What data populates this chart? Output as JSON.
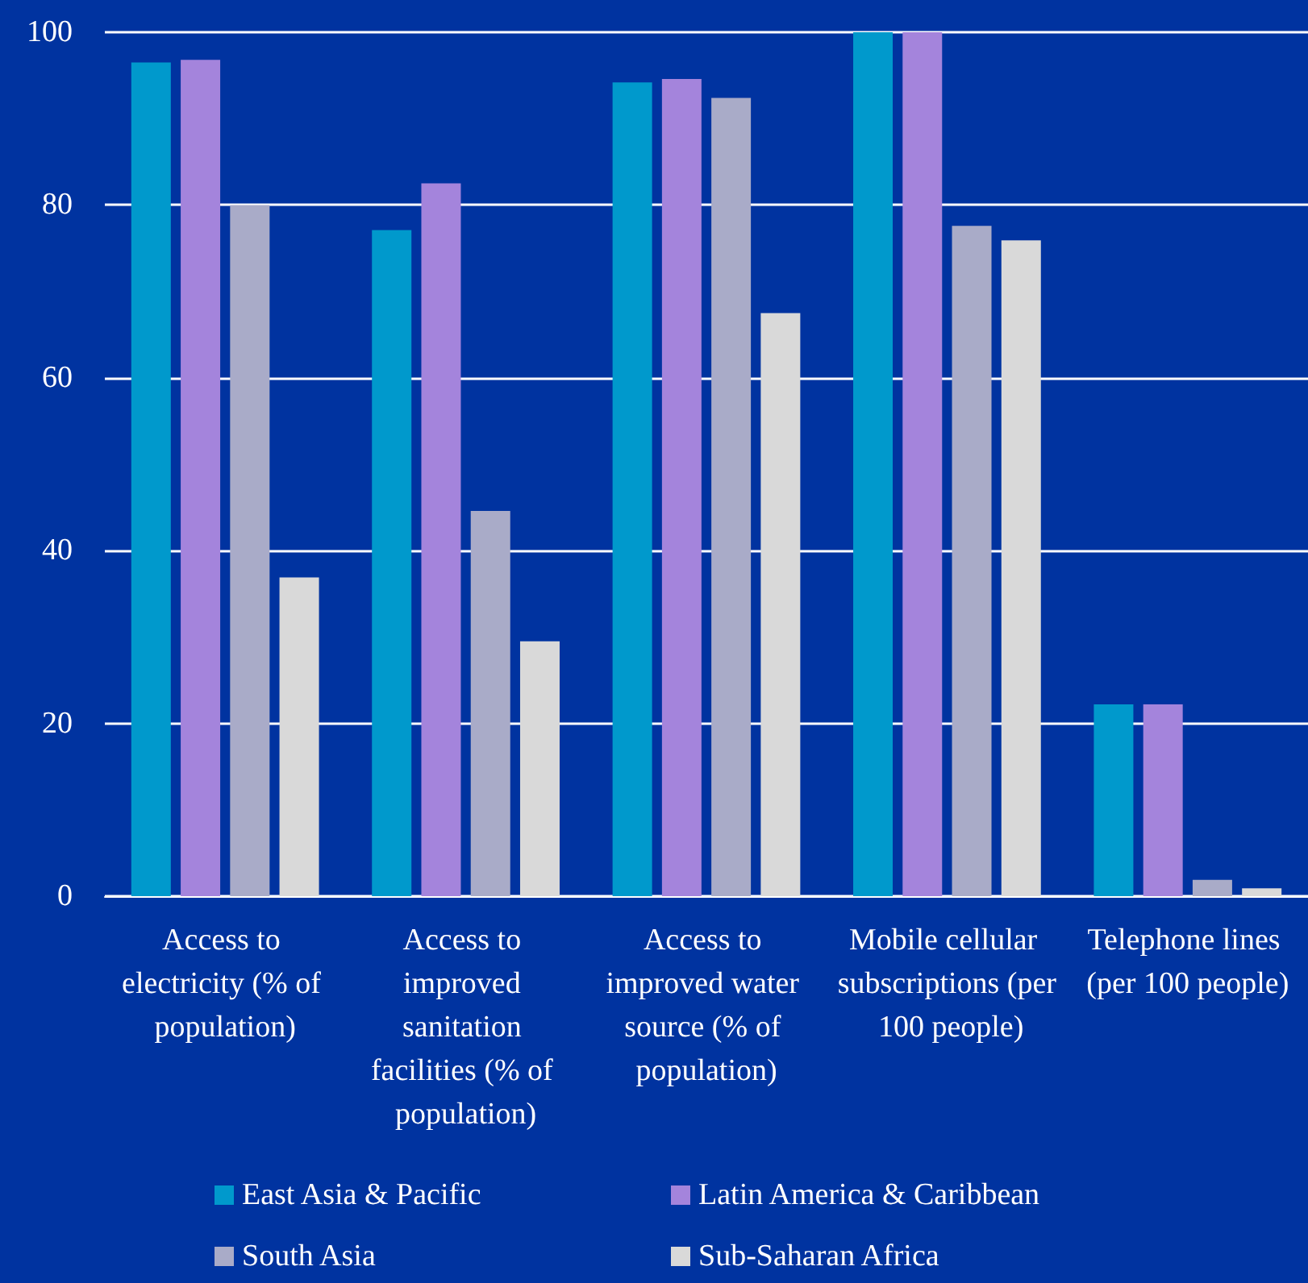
{
  "chart_data": {
    "type": "bar",
    "categories": [
      "Access to electricity (% of population)",
      "Access to improved sanitation facilities (% of population)",
      "Access to improved water source (% of population)",
      "Mobile cellular subscriptions (per 100 people)",
      "Telephone lines (per 100 people)"
    ],
    "series": [
      {
        "name": "East Asia & Pacific",
        "color": "#0099cc",
        "values": [
          96.5,
          77.1,
          94.2,
          100,
          22.2
        ]
      },
      {
        "name": "Latin America & Caribbean",
        "color": "#a484dc",
        "values": [
          96.8,
          82.5,
          94.6,
          100,
          22.2
        ]
      },
      {
        "name": "South Asia",
        "color": "#a9abc8",
        "values": [
          80,
          44.6,
          92.4,
          77.6,
          1.9
        ]
      },
      {
        "name": "Sub-Saharan Africa",
        "color": "#d9d9d9",
        "values": [
          36.9,
          29.5,
          67.5,
          75.9,
          0.9
        ]
      }
    ],
    "ylim": [
      0,
      100
    ],
    "yticks": [
      0,
      20,
      40,
      60,
      80,
      100
    ],
    "grid": "y",
    "legend": "bottom"
  }
}
